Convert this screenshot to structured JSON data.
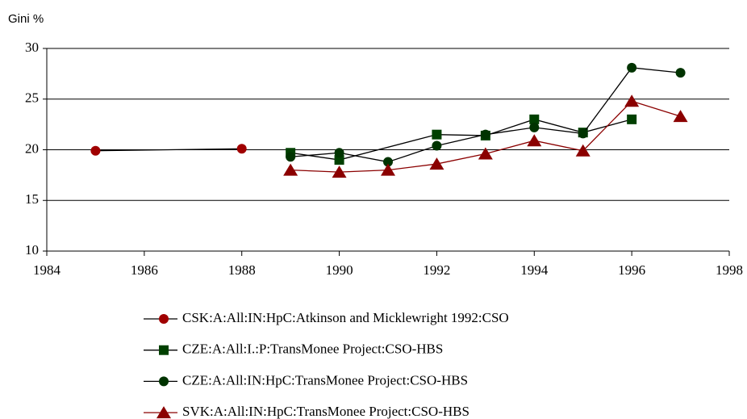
{
  "chart_data": {
    "type": "line",
    "ylabel": "Gini %",
    "xlim": [
      1984,
      1998
    ],
    "xticks": [
      1984,
      1986,
      1988,
      1990,
      1992,
      1994,
      1996,
      1998
    ],
    "ylim": [
      10,
      30
    ],
    "yticks": [
      10,
      15,
      20,
      25,
      30
    ],
    "grid": true,
    "legend": "bottom",
    "series": [
      {
        "name": "CSK:A:All:IN:HpC:Atkinson and Micklewright 1992:CSO",
        "color": "#a00000",
        "line_color": "#000000",
        "marker": "circle",
        "x": [
          1985,
          1988
        ],
        "values": [
          19.9,
          20.1
        ]
      },
      {
        "name": "CZE:A:All:I.:P:TransMonee Project:CSO-HBS",
        "color": "#004000",
        "line_color": "#000000",
        "marker": "square",
        "x": [
          1989,
          1990,
          1992,
          1993,
          1994,
          1995,
          1996
        ],
        "values": [
          19.7,
          19.0,
          21.5,
          21.4,
          23.0,
          21.7,
          23.0
        ]
      },
      {
        "name": "CZE:A:All:IN:HpC:TransMonee Project:CSO-HBS",
        "color": "#003300",
        "line_color": "#000000",
        "marker": "circle",
        "x": [
          1989,
          1990,
          1991,
          1992,
          1993,
          1994,
          1995,
          1996,
          1997
        ],
        "values": [
          19.3,
          19.7,
          18.8,
          20.4,
          21.5,
          22.2,
          21.6,
          28.1,
          27.6
        ]
      },
      {
        "name": "SVK:A:All:IN:HpC:TransMonee Project:CSO-HBS",
        "color": "#8b0000",
        "line_color": "#8b0000",
        "marker": "triangle",
        "x": [
          1989,
          1990,
          1991,
          1992,
          1993,
          1994,
          1995,
          1996,
          1997
        ],
        "values": [
          18.0,
          17.8,
          18.0,
          18.6,
          19.6,
          20.9,
          19.9,
          24.8,
          23.3
        ]
      }
    ]
  }
}
